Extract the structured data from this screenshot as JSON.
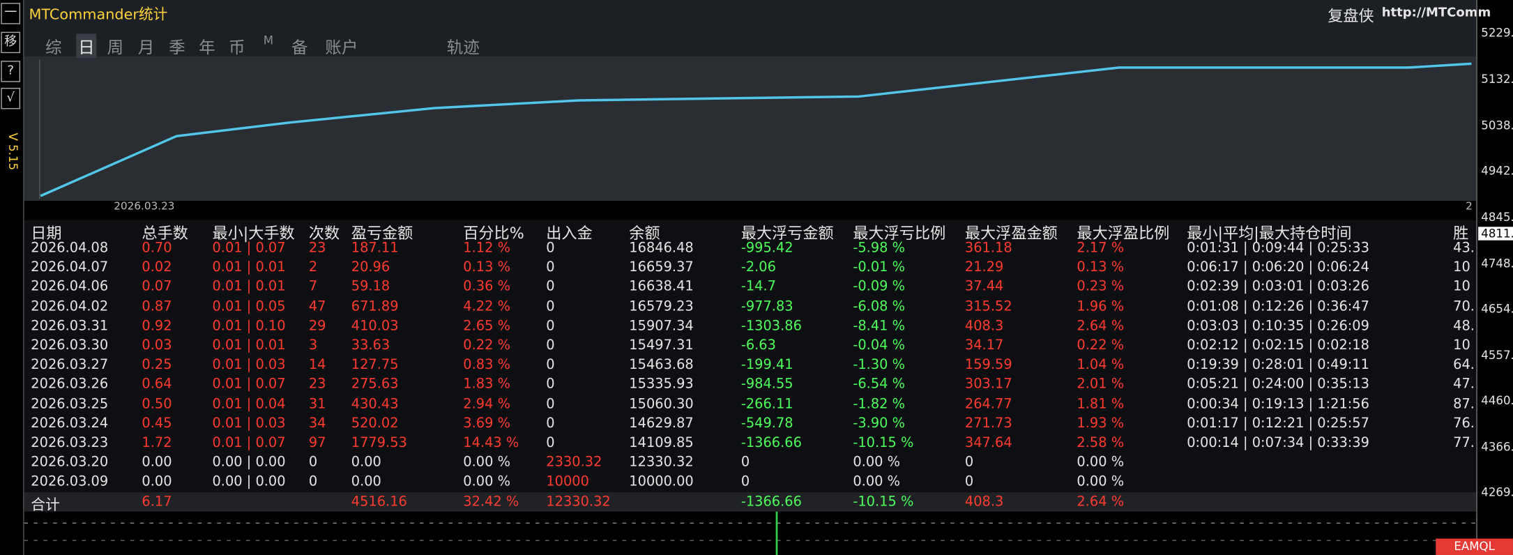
{
  "header": {
    "title": "MTCommander统计",
    "brand": "复盘侠",
    "url": "http://MTComm",
    "version": "V 5.15",
    "side_buttons": [
      "一",
      "移",
      "?",
      "√"
    ]
  },
  "tabs": [
    "综",
    "日",
    "周",
    "月",
    "季",
    "年",
    "币",
    "M",
    "备",
    "账户",
    "轨迹"
  ],
  "chart": {
    "date_label": "2026.03.23",
    "end_label": "2"
  },
  "price_axis": {
    "labels": [
      "5229.",
      "5132.",
      "5038.",
      "4942.",
      "4845.",
      "4811.",
      "4748.",
      "4654.",
      "4557.",
      "4460.",
      "4366.",
      "4269."
    ],
    "current": "4811."
  },
  "table": {
    "columns": [
      "日期",
      "总手数",
      "最小|大手数",
      "次数",
      "盈亏金额",
      "百分比%",
      "出入金",
      "余额",
      "最大浮亏金额",
      "最大浮亏比例",
      "最大浮盈金额",
      "最大浮盈比例",
      "最小|平均|最大持仓时间",
      "胜"
    ],
    "rows": [
      [
        "2026.04.08",
        "0.70",
        "0.01 | 0.07",
        "23",
        "187.11",
        "1.12 %",
        "0",
        "16846.48",
        "-995.42",
        "-5.98 %",
        "361.18",
        "2.17 %",
        "0:01:31 | 0:09:44 | 0:25:33",
        "43."
      ],
      [
        "2026.04.07",
        "0.02",
        "0.01 | 0.01",
        "2",
        "20.96",
        "0.13 %",
        "0",
        "16659.37",
        "-2.06",
        "-0.01 %",
        "21.29",
        "0.13 %",
        "0:06:17 | 0:06:20 | 0:06:24",
        "10"
      ],
      [
        "2026.04.06",
        "0.07",
        "0.01 | 0.01",
        "7",
        "59.18",
        "0.36 %",
        "0",
        "16638.41",
        "-14.7",
        "-0.09 %",
        "37.44",
        "0.23 %",
        "0:02:39 | 0:03:01 | 0:03:26",
        "10"
      ],
      [
        "2026.04.02",
        "0.87",
        "0.01 | 0.05",
        "47",
        "671.89",
        "4.22 %",
        "0",
        "16579.23",
        "-977.83",
        "-6.08 %",
        "315.52",
        "1.96 %",
        "0:01:08 | 0:12:26 | 0:36:47",
        "70."
      ],
      [
        "2026.03.31",
        "0.92",
        "0.01 | 0.10",
        "29",
        "410.03",
        "2.65 %",
        "0",
        "15907.34",
        "-1303.86",
        "-8.41 %",
        "408.3",
        "2.64 %",
        "0:03:03 | 0:10:35 | 0:26:09",
        "48."
      ],
      [
        "2026.03.30",
        "0.03",
        "0.01 | 0.01",
        "3",
        "33.63",
        "0.22 %",
        "0",
        "15497.31",
        "-6.63",
        "-0.04 %",
        "34.17",
        "0.22 %",
        "0:02:12 | 0:02:15 | 0:02:18",
        "10"
      ],
      [
        "2026.03.27",
        "0.25",
        "0.01 | 0.03",
        "14",
        "127.75",
        "0.83 %",
        "0",
        "15463.68",
        "-199.41",
        "-1.30 %",
        "159.59",
        "1.04 %",
        "0:19:39 | 0:28:01 | 0:49:11",
        "64."
      ],
      [
        "2026.03.26",
        "0.64",
        "0.01 | 0.07",
        "23",
        "275.63",
        "1.83 %",
        "0",
        "15335.93",
        "-984.55",
        "-6.54 %",
        "303.17",
        "2.01 %",
        "0:05:21 | 0:24:00 | 0:35:13",
        "47."
      ],
      [
        "2026.03.25",
        "0.50",
        "0.01 | 0.04",
        "31",
        "430.43",
        "2.94 %",
        "0",
        "15060.30",
        "-266.11",
        "-1.82 %",
        "264.77",
        "1.81 %",
        "0:00:34 | 0:19:13 | 1:21:56",
        "87."
      ],
      [
        "2026.03.24",
        "0.45",
        "0.01 | 0.03",
        "34",
        "520.02",
        "3.69 %",
        "0",
        "14629.87",
        "-549.78",
        "-3.90 %",
        "271.73",
        "1.93 %",
        "0:01:17 | 0:12:21 | 0:25:57",
        "76."
      ],
      [
        "2026.03.23",
        "1.72",
        "0.01 | 0.07",
        "97",
        "1779.53",
        "14.43 %",
        "0",
        "14109.85",
        "-1366.66",
        "-10.15 %",
        "347.64",
        "2.58 %",
        "0:00:14 | 0:07:34 | 0:33:39",
        "77."
      ],
      [
        "2026.03.20",
        "0.00",
        "0.00 | 0.00",
        "0",
        "0.00",
        "0.00 %",
        "2330.32",
        "12330.32",
        "0",
        "0.00 %",
        "0",
        "0.00 %",
        null,
        null
      ],
      [
        "2026.03.09",
        "0.00",
        "0.00 | 0.00",
        "0",
        "0.00",
        "0.00 %",
        "10000",
        "10000.00",
        "0",
        "0.00 %",
        "0",
        "0.00 %",
        null,
        null
      ]
    ],
    "total": [
      "合计",
      "6.17",
      null,
      null,
      "4516.16",
      "32.42 %",
      "12330.32",
      null,
      "-1366.66",
      "-10.15 %",
      "408.3",
      "2.64 %",
      null,
      null
    ]
  },
  "footer": {
    "logo": "EAMQL"
  }
}
